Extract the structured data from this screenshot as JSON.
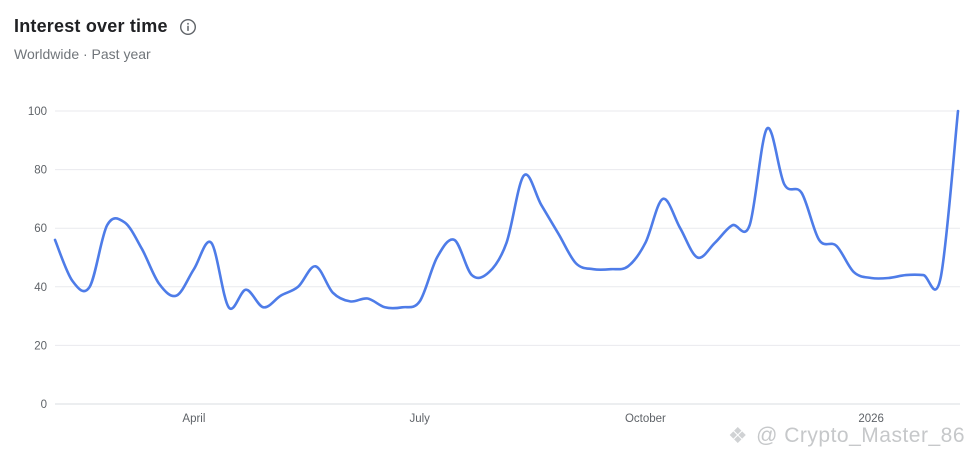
{
  "header": {
    "title": "Interest over time",
    "subtitle": "Worldwide · Past year"
  },
  "watermark": {
    "icon": "binance-diamond-icon",
    "text": "@ Crypto_Master_86"
  },
  "chart_data": {
    "type": "line",
    "title": "Interest over time",
    "region": "Worldwide",
    "time_range": "Past year",
    "ylim": [
      0,
      100
    ],
    "y_ticks": [
      0,
      20,
      40,
      60,
      80,
      100
    ],
    "x_ticks": [
      {
        "index": 8,
        "label": "April"
      },
      {
        "index": 21,
        "label": "July"
      },
      {
        "index": 34,
        "label": "October"
      },
      {
        "index": 47,
        "label": "2026"
      }
    ],
    "values": [
      56,
      42,
      40,
      61,
      62,
      53,
      41,
      37,
      46,
      55,
      33,
      39,
      33,
      37,
      40,
      47,
      38,
      35,
      36,
      33,
      33,
      35,
      50,
      56,
      44,
      45,
      55,
      78,
      68,
      58,
      48,
      46,
      46,
      47,
      55,
      70,
      60,
      50,
      55,
      61,
      61,
      94,
      75,
      72,
      56,
      54,
      45,
      43,
      43,
      44,
      44,
      43,
      100
    ],
    "line_color": "#4e7ce8",
    "grid_color": "#e9eaee",
    "axis_color": "#dadce0",
    "label_color": "#5f6368",
    "grid": true,
    "legend_position": "none"
  }
}
